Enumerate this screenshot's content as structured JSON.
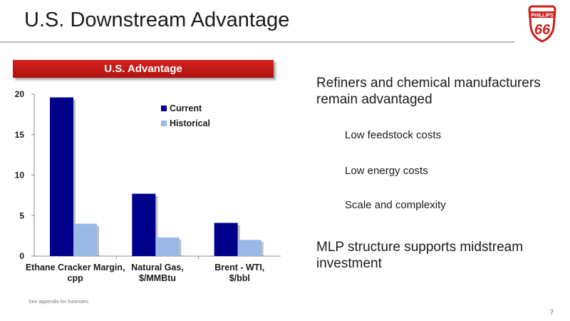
{
  "slide": {
    "title": "U.S. Downstream Advantage",
    "logo": {
      "text_top": "PHILLIPS",
      "text_main": "66",
      "icon": "phillips-66-shield-logo",
      "color": "#cc1f1a"
    },
    "banner": "U.S. Advantage",
    "footnote": "See appendix for footnotes.",
    "page_number": "7",
    "colors": {
      "accent_red": "#c41a17",
      "current": "#00008b",
      "historical": "#99b8e6"
    }
  },
  "bullets": {
    "main1": "Refiners and chemical manufacturers remain advantaged",
    "sub": [
      "Low feedstock costs",
      "Low energy costs",
      "Scale and complexity"
    ],
    "main2": "MLP structure supports midstream investment"
  },
  "chart_data": {
    "type": "bar",
    "categories": [
      "Ethane Cracker Margin, cpp",
      "Natural Gas, $/MMBtu",
      "Brent - WTI, $/bbl"
    ],
    "series": [
      {
        "name": "Current",
        "values": [
          19.6,
          7.7,
          4.1
        ]
      },
      {
        "name": "Historical",
        "values": [
          4.0,
          2.3,
          2.0
        ]
      }
    ],
    "ylim": [
      0,
      20
    ],
    "yticks": [
      0,
      5,
      10,
      15,
      20
    ],
    "legend": "upper-center",
    "grid": false
  }
}
